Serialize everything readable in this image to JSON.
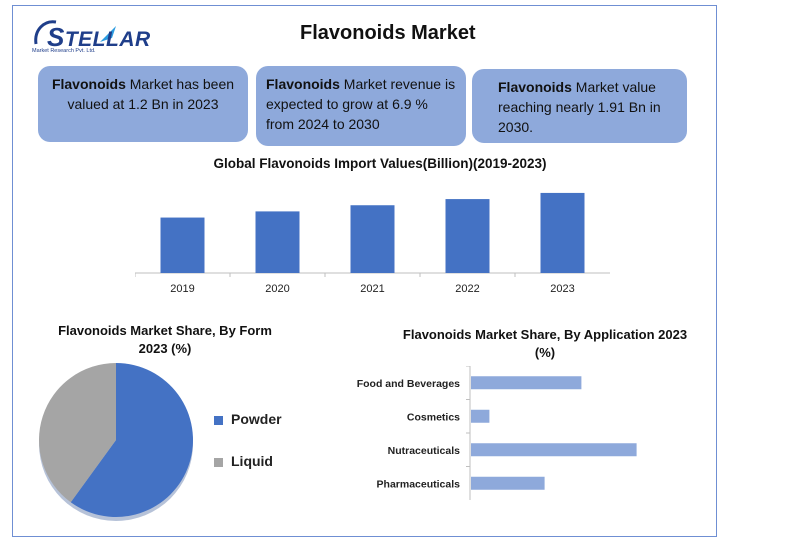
{
  "logo": {
    "text": "TELLAR",
    "subtitle": "Market Research Pvt. Ltd.",
    "s_letter": "S"
  },
  "header": {
    "title": "Flavonoids Market"
  },
  "stats": [
    {
      "bold": "Flavonoids",
      "text": " Market has been valued at 1.2 Bn in 2023"
    },
    {
      "bold": "Flavonoids",
      "text": " Market revenue is expected to grow at 6.9 % from 2024 to 2030"
    },
    {
      "bold": "Flavonoids",
      "text": " Market value reaching nearly 1.91 Bn in 2030."
    }
  ],
  "colors": {
    "bar_blue": "#4472c4",
    "bar_light": "#8ea9db",
    "gray": "#a5a5a5",
    "box": "#8ea9db"
  },
  "chart_data": [
    {
      "type": "bar",
      "title": "Global Flavonoids Import Values(Billion)(2019-2023)",
      "categories": [
        "2019",
        "2020",
        "2021",
        "2022",
        "2023"
      ],
      "values": [
        0.63,
        0.7,
        0.77,
        0.84,
        0.91
      ],
      "ylim": [
        0,
        1.0
      ],
      "grid": false
    },
    {
      "type": "pie",
      "title": "Flavonoids Market Share, By Form 2023 (%)",
      "labels": [
        "Powder",
        "Liquid"
      ],
      "values": [
        60,
        40
      ],
      "legend": "right"
    },
    {
      "type": "bar",
      "orientation": "horizontal",
      "title": "Flavonoids Market Share, By Application 2023 (%)",
      "categories": [
        "Food and Beverages",
        "Cosmetics",
        "Nutraceuticals",
        "Pharmaceuticals"
      ],
      "values": [
        30,
        5,
        45,
        20
      ],
      "xlim": [
        0,
        50
      ],
      "grid": false
    }
  ]
}
